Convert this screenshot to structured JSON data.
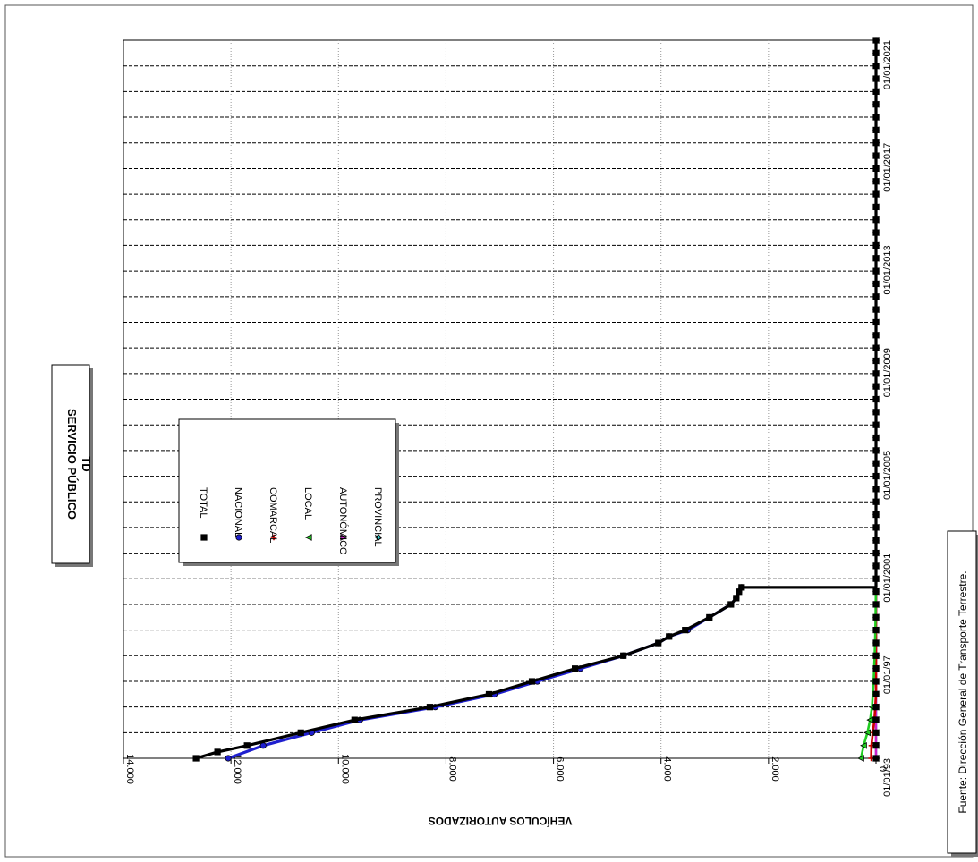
{
  "title": "SERVICIO PÚBLICO",
  "subtitle": "TD",
  "source": "Fuente: Dirección General de Transporte Terrestre.",
  "chart_data": {
    "type": "line",
    "orientation": "rotated",
    "ylabel": "VEHÍCULOS  AUTORIZADOS",
    "xlabel": "",
    "ylim": [
      0,
      14000
    ],
    "y_ticks": [
      0,
      2000,
      4000,
      6000,
      8000,
      10000,
      12000,
      14000
    ],
    "y_tick_labels": [
      "0",
      "2.000",
      "4.000",
      "6.000",
      "8.000",
      "10.000",
      "12.000",
      "14.000"
    ],
    "xlim": [
      "1993-01-01",
      "2021-01-01"
    ],
    "x_tick_labels": [
      "01/01/93",
      "01/01/97",
      "01/01/2001",
      "01/01/2005",
      "01/01/2009",
      "01/01/2013",
      "01/01/2017",
      "01/01/2021"
    ],
    "legend_position": "center-left",
    "grid": true,
    "series": [
      {
        "name": "TOTAL",
        "color": "#000000",
        "marker": "square",
        "points": [
          [
            "1993-01-01",
            12650
          ],
          [
            "1993-04-01",
            12250
          ],
          [
            "1993-07-01",
            11700
          ],
          [
            "1994-01-01",
            10700
          ],
          [
            "1994-07-01",
            9700
          ],
          [
            "1995-01-01",
            8300
          ],
          [
            "1995-07-01",
            7200
          ],
          [
            "1996-01-01",
            6400
          ],
          [
            "1996-07-01",
            5600
          ],
          [
            "1997-01-01",
            4700
          ],
          [
            "1997-07-01",
            4050
          ],
          [
            "1997-10-01",
            3850
          ],
          [
            "1998-01-01",
            3550
          ],
          [
            "1998-07-01",
            3100
          ],
          [
            "1999-01-01",
            2700
          ],
          [
            "1999-04-01",
            2600
          ],
          [
            "1999-07-01",
            2550
          ],
          [
            "1999-09-01",
            2500
          ],
          [
            "1999-09-02",
            0
          ],
          [
            "2000-01-01",
            0
          ],
          [
            "2021-01-01",
            0
          ]
        ]
      },
      {
        "name": "NACIONAL",
        "color": "#1f1fcf",
        "marker": "circle",
        "points": [
          [
            "1993-01-01",
            12050
          ],
          [
            "1993-07-01",
            11400
          ],
          [
            "1994-01-01",
            10500
          ],
          [
            "1994-07-01",
            9600
          ],
          [
            "1995-01-01",
            8200
          ],
          [
            "1995-07-01",
            7100
          ],
          [
            "1996-01-01",
            6300
          ],
          [
            "1996-07-01",
            5500
          ],
          [
            "1997-01-01",
            4700
          ],
          [
            "1997-07-01",
            4050
          ],
          [
            "1997-10-01",
            3850
          ],
          [
            "1998-01-01",
            3500
          ],
          [
            "1998-07-01",
            3100
          ],
          [
            "1999-01-01",
            2700
          ],
          [
            "1999-04-01",
            2600
          ],
          [
            "1999-07-01",
            2550
          ],
          [
            "1999-09-01",
            2500
          ]
        ]
      },
      {
        "name": "COMARCAL",
        "color": "#cc0000",
        "marker": "star",
        "points": [
          [
            "1993-01-01",
            90
          ],
          [
            "1993-07-01",
            85
          ],
          [
            "1994-01-01",
            60
          ],
          [
            "1994-07-01",
            30
          ],
          [
            "1995-07-01",
            0
          ],
          [
            "2021-01-01",
            0
          ]
        ]
      },
      {
        "name": "LOCAL",
        "color": "#22cc22",
        "marker": "triangle",
        "points": [
          [
            "1993-01-01",
            280
          ],
          [
            "1993-07-01",
            230
          ],
          [
            "1994-01-01",
            160
          ],
          [
            "1994-07-01",
            110
          ],
          [
            "1995-01-01",
            75
          ],
          [
            "1996-01-01",
            45
          ],
          [
            "1997-01-01",
            25
          ],
          [
            "1998-01-01",
            12
          ],
          [
            "1999-01-01",
            5
          ],
          [
            "2000-01-01",
            0
          ],
          [
            "2021-01-01",
            0
          ]
        ]
      },
      {
        "name": "AUTONÓMICO",
        "color": "#cc22cc",
        "marker": "triangle-down",
        "points": [
          [
            "1993-01-01",
            0
          ],
          [
            "2021-01-01",
            0
          ]
        ]
      },
      {
        "name": "PROVINCIAL",
        "color": "#33dddd",
        "marker": "diamond",
        "points": [
          [
            "1993-01-01",
            0
          ],
          [
            "2021-01-01",
            0
          ]
        ]
      }
    ]
  }
}
